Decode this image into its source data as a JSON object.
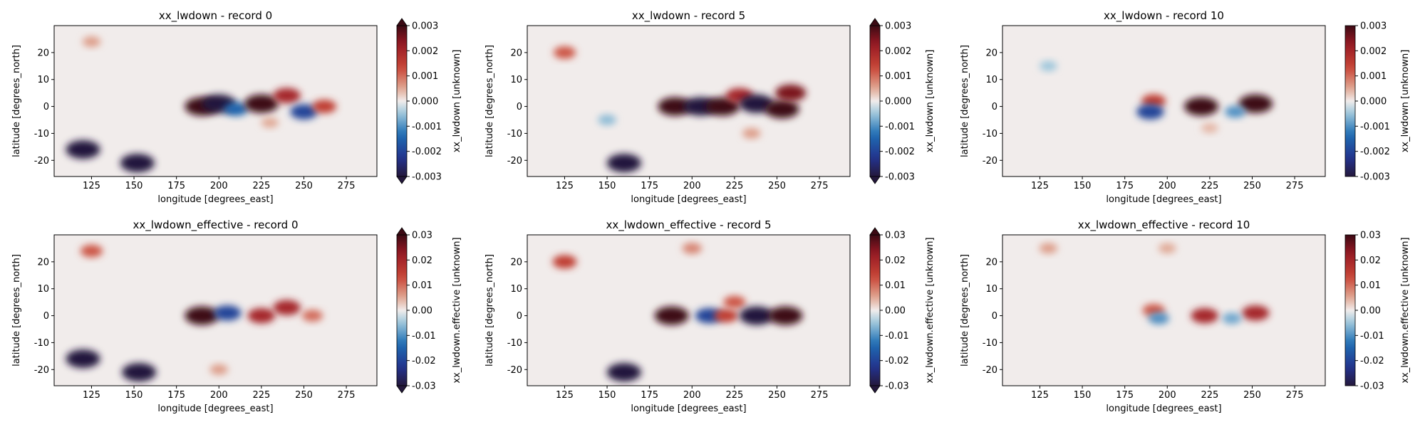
{
  "chart_data": [
    {
      "type": "heatmap",
      "title": "xx_lwdown - record 0",
      "xlabel": "longitude [degrees_east]",
      "ylabel": "latitude [degrees_north]",
      "xlim": [
        103,
        293
      ],
      "ylim": [
        -26,
        30
      ],
      "x_ticks": [
        125,
        150,
        175,
        200,
        225,
        250,
        275
      ],
      "y_ticks": [
        -20,
        -10,
        0,
        10,
        20
      ],
      "colorbar": {
        "label": "xx_lwdown [unknown]",
        "min": -0.003,
        "max": 0.003,
        "ticks": [
          "-0.003",
          "-0.002",
          "-0.001",
          "0.000",
          "0.001",
          "0.002",
          "0.003"
        ],
        "extend": "both"
      },
      "colormap": "balance (blue-white-red)",
      "features": [
        {
          "lon": 190,
          "lat": 0,
          "value": 0.003
        },
        {
          "lon": 200,
          "lat": 1,
          "value": -0.003
        },
        {
          "lon": 210,
          "lat": -1,
          "value": -0.0015
        },
        {
          "lon": 225,
          "lat": 1,
          "value": 0.003
        },
        {
          "lon": 240,
          "lat": 4,
          "value": 0.002
        },
        {
          "lon": 250,
          "lat": -2,
          "value": -0.002
        },
        {
          "lon": 262,
          "lat": 0,
          "value": 0.0015
        },
        {
          "lon": 120,
          "lat": -16,
          "value": -0.003
        },
        {
          "lon": 152,
          "lat": -21,
          "value": -0.003
        },
        {
          "lon": 125,
          "lat": 24,
          "value": 0.0006
        },
        {
          "lon": 230,
          "lat": -6,
          "value": 0.0005
        }
      ]
    },
    {
      "type": "heatmap",
      "title": "xx_lwdown - record 5",
      "xlabel": "longitude [degrees_east]",
      "ylabel": "latitude [degrees_north]",
      "xlim": [
        103,
        293
      ],
      "ylim": [
        -26,
        30
      ],
      "x_ticks": [
        125,
        150,
        175,
        200,
        225,
        250,
        275
      ],
      "y_ticks": [
        -20,
        -10,
        0,
        10,
        20
      ],
      "colorbar": {
        "label": "xx_lwdown [unknown]",
        "min": -0.003,
        "max": 0.003,
        "ticks": [
          "-0.003",
          "-0.002",
          "-0.001",
          "0.000",
          "0.001",
          "0.002",
          "0.003"
        ],
        "extend": "both"
      },
      "colormap": "balance (blue-white-red)",
      "features": [
        {
          "lon": 190,
          "lat": 0,
          "value": 0.003
        },
        {
          "lon": 205,
          "lat": 0,
          "value": -0.003
        },
        {
          "lon": 218,
          "lat": 0,
          "value": 0.003
        },
        {
          "lon": 228,
          "lat": 4,
          "value": 0.002
        },
        {
          "lon": 238,
          "lat": 1,
          "value": -0.003
        },
        {
          "lon": 253,
          "lat": -1,
          "value": 0.003
        },
        {
          "lon": 258,
          "lat": 5,
          "value": 0.0025
        },
        {
          "lon": 160,
          "lat": -21,
          "value": -0.003
        },
        {
          "lon": 125,
          "lat": 20,
          "value": 0.0012
        },
        {
          "lon": 235,
          "lat": -10,
          "value": 0.0006
        },
        {
          "lon": 150,
          "lat": -5,
          "value": -0.0006
        }
      ]
    },
    {
      "type": "heatmap",
      "title": "xx_lwdown - record 10",
      "xlabel": "longitude [degrees_east]",
      "ylabel": "latitude [degrees_north]",
      "xlim": [
        103,
        293
      ],
      "ylim": [
        -26,
        30
      ],
      "x_ticks": [
        125,
        150,
        175,
        200,
        225,
        250,
        275
      ],
      "y_ticks": [
        -20,
        -10,
        0,
        10,
        20
      ],
      "colorbar": {
        "label": "xx_lwdown [unknown]",
        "min": -0.003,
        "max": 0.003,
        "ticks": [
          "-0.003",
          "-0.002",
          "-0.001",
          "0.000",
          "0.001",
          "0.002",
          "0.003"
        ],
        "extend": "neither"
      },
      "colormap": "balance (blue-white-red)",
      "features": [
        {
          "lon": 192,
          "lat": 2,
          "value": 0.0015
        },
        {
          "lon": 190,
          "lat": -2,
          "value": -0.002
        },
        {
          "lon": 220,
          "lat": 0,
          "value": 0.003
        },
        {
          "lon": 252,
          "lat": 1,
          "value": 0.003
        },
        {
          "lon": 240,
          "lat": -2,
          "value": -0.001
        },
        {
          "lon": 130,
          "lat": 15,
          "value": -0.0005
        },
        {
          "lon": 225,
          "lat": -8,
          "value": 0.0004
        }
      ]
    },
    {
      "type": "heatmap",
      "title": "xx_lwdown_effective - record 0",
      "xlabel": "longitude [degrees_east]",
      "ylabel": "latitude [degrees_north]",
      "xlim": [
        103,
        293
      ],
      "ylim": [
        -26,
        30
      ],
      "x_ticks": [
        125,
        150,
        175,
        200,
        225,
        250,
        275
      ],
      "y_ticks": [
        -20,
        -10,
        0,
        10,
        20
      ],
      "colorbar": {
        "label": "xx_lwdown.effective [unknown]",
        "min": -0.03,
        "max": 0.03,
        "ticks": [
          "-0.03",
          "-0.02",
          "-0.01",
          "0.00",
          "0.01",
          "0.02",
          "0.03"
        ],
        "extend": "both"
      },
      "colormap": "balance (blue-white-red)",
      "features": [
        {
          "lon": 190,
          "lat": 0,
          "value": 0.03
        },
        {
          "lon": 205,
          "lat": 1,
          "value": -0.02
        },
        {
          "lon": 225,
          "lat": 0,
          "value": 0.02
        },
        {
          "lon": 240,
          "lat": 3,
          "value": 0.02
        },
        {
          "lon": 255,
          "lat": 0,
          "value": 0.01
        },
        {
          "lon": 120,
          "lat": -16,
          "value": -0.03
        },
        {
          "lon": 153,
          "lat": -21,
          "value": -0.03
        },
        {
          "lon": 125,
          "lat": 24,
          "value": 0.012
        },
        {
          "lon": 200,
          "lat": -20,
          "value": 0.006
        }
      ]
    },
    {
      "type": "heatmap",
      "title": "xx_lwdown_effective - record 5",
      "xlabel": "longitude [degrees_east]",
      "ylabel": "latitude [degrees_north]",
      "xlim": [
        103,
        293
      ],
      "ylim": [
        -26,
        30
      ],
      "x_ticks": [
        125,
        150,
        175,
        200,
        225,
        250,
        275
      ],
      "y_ticks": [
        -20,
        -10,
        0,
        10,
        20
      ],
      "colorbar": {
        "label": "xx_lwdown.effective [unknown]",
        "min": -0.03,
        "max": 0.03,
        "ticks": [
          "-0.03",
          "-0.02",
          "-0.01",
          "0.00",
          "0.01",
          "0.02",
          "0.03"
        ],
        "extend": "both"
      },
      "colormap": "balance (blue-white-red)",
      "features": [
        {
          "lon": 188,
          "lat": 0,
          "value": 0.03
        },
        {
          "lon": 210,
          "lat": 0,
          "value": -0.02
        },
        {
          "lon": 220,
          "lat": 0,
          "value": 0.015
        },
        {
          "lon": 225,
          "lat": 5,
          "value": 0.012
        },
        {
          "lon": 238,
          "lat": 0,
          "value": -0.03
        },
        {
          "lon": 255,
          "lat": 0,
          "value": 0.03
        },
        {
          "lon": 160,
          "lat": -21,
          "value": -0.03
        },
        {
          "lon": 125,
          "lat": 20,
          "value": 0.015
        },
        {
          "lon": 200,
          "lat": 25,
          "value": 0.008
        }
      ]
    },
    {
      "type": "heatmap",
      "title": "xx_lwdown_effective - record 10",
      "xlabel": "longitude [degrees_east]",
      "ylabel": "latitude [degrees_north]",
      "xlim": [
        103,
        293
      ],
      "ylim": [
        -26,
        30
      ],
      "x_ticks": [
        125,
        150,
        175,
        200,
        225,
        250,
        275
      ],
      "y_ticks": [
        -20,
        -10,
        0,
        10,
        20
      ],
      "colorbar": {
        "label": "xx_lwdown.effective [unknown]",
        "min": -0.03,
        "max": 0.03,
        "ticks": [
          "-0.03",
          "-0.02",
          "-0.01",
          "0.00",
          "0.01",
          "0.02",
          "0.03"
        ],
        "extend": "neither"
      },
      "colormap": "balance (blue-white-red)",
      "features": [
        {
          "lon": 192,
          "lat": 2,
          "value": 0.012
        },
        {
          "lon": 195,
          "lat": -1,
          "value": -0.01
        },
        {
          "lon": 222,
          "lat": 0,
          "value": 0.02
        },
        {
          "lon": 252,
          "lat": 1,
          "value": 0.02
        },
        {
          "lon": 238,
          "lat": -1,
          "value": -0.008
        },
        {
          "lon": 130,
          "lat": 25,
          "value": 0.006
        },
        {
          "lon": 200,
          "lat": 25,
          "value": 0.005
        }
      ]
    }
  ]
}
